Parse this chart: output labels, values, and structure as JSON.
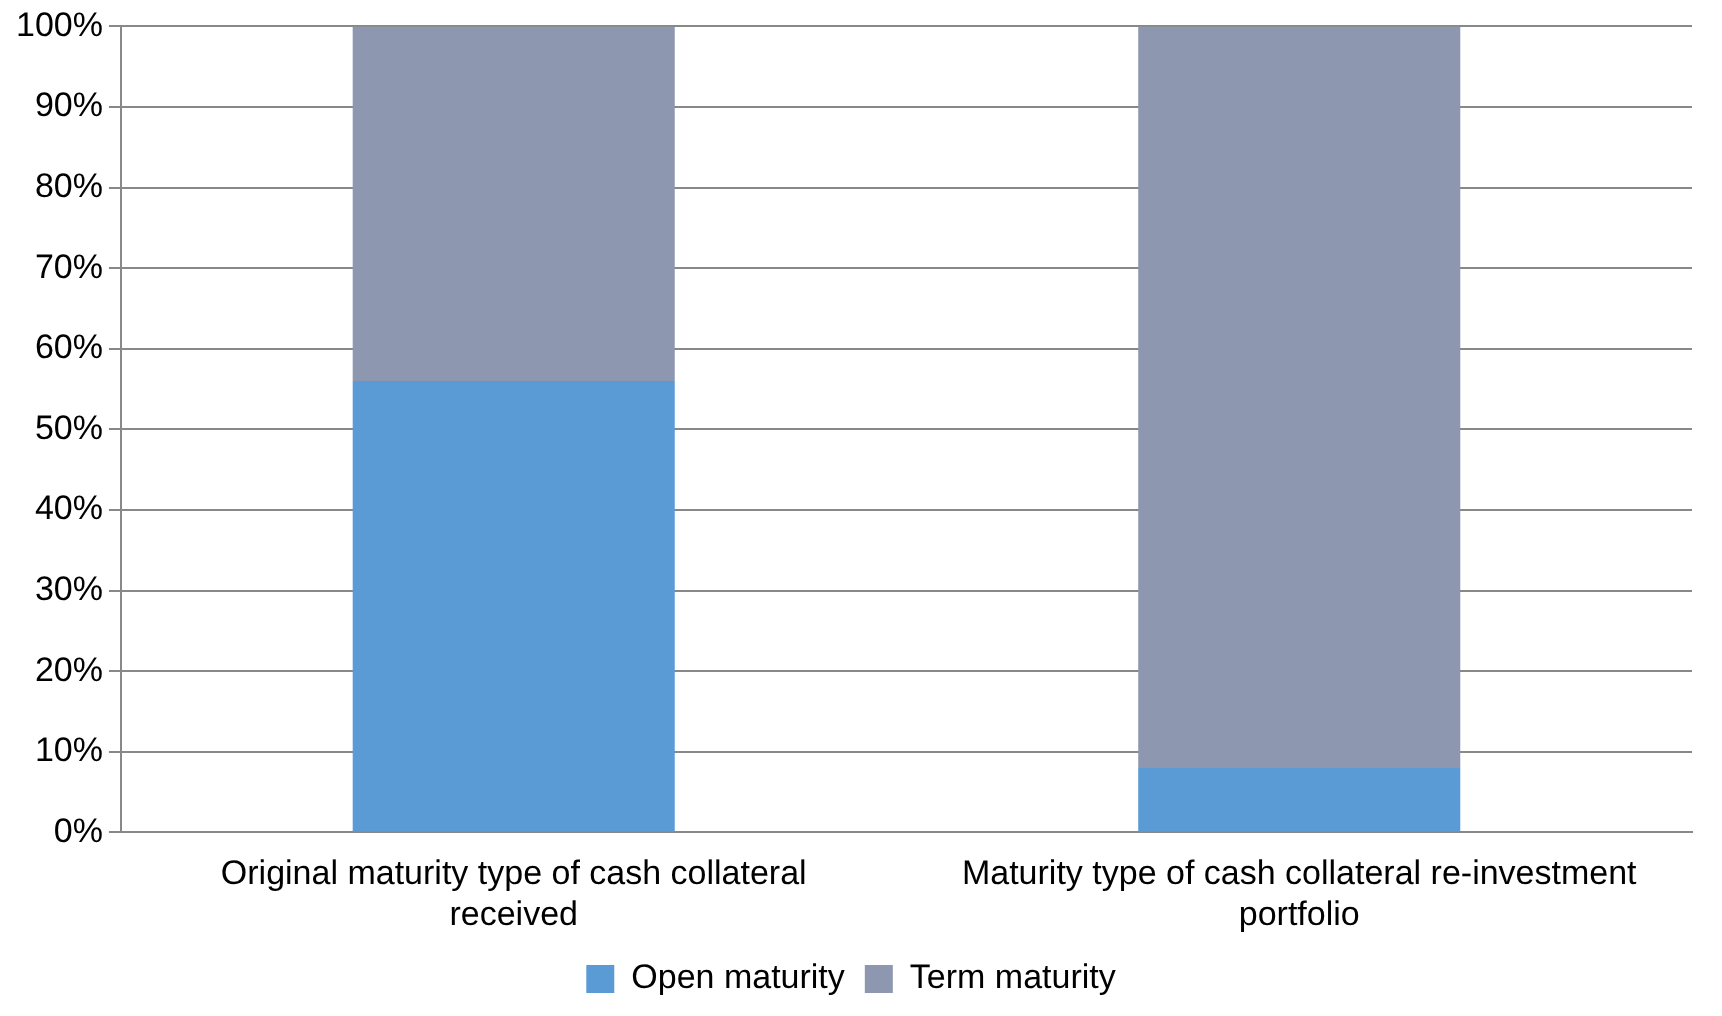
{
  "chart_data": {
    "type": "bar",
    "stacked": true,
    "categories": [
      "Original maturity type of cash collateral received",
      "Maturity type of cash collateral re-investment portfolio"
    ],
    "series": [
      {
        "name": "Open maturity",
        "color": "#5b9bd5",
        "values": [
          56,
          8
        ]
      },
      {
        "name": "Term maturity",
        "color": "#8e97b0",
        "values": [
          44,
          92
        ]
      }
    ],
    "ylim": [
      0,
      100
    ],
    "yticks": [
      {
        "value": 0,
        "label": "0%"
      },
      {
        "value": 10,
        "label": "10%"
      },
      {
        "value": 20,
        "label": "20%"
      },
      {
        "value": 30,
        "label": "30%"
      },
      {
        "value": 40,
        "label": "40%"
      },
      {
        "value": 50,
        "label": "50%"
      },
      {
        "value": 60,
        "label": "60%"
      },
      {
        "value": 70,
        "label": "70%"
      },
      {
        "value": 80,
        "label": "80%"
      },
      {
        "value": 90,
        "label": "90%"
      },
      {
        "value": 100,
        "label": "100%"
      }
    ],
    "grid": "y",
    "legend": "bottom"
  }
}
